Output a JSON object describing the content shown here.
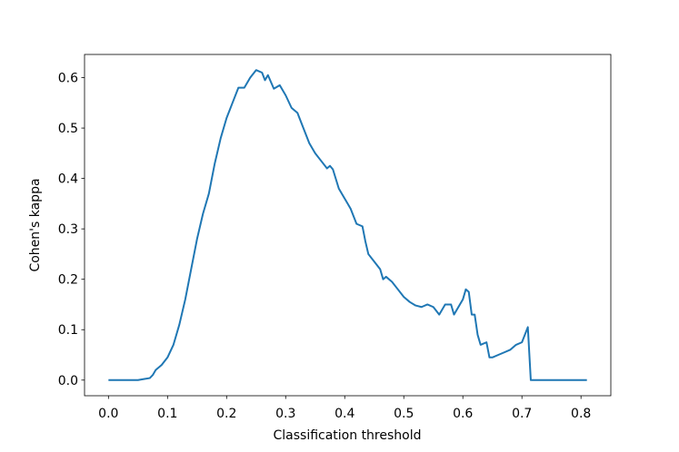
{
  "chart_data": {
    "type": "line",
    "xlabel": "Classification threshold",
    "ylabel": "Cohen's kappa",
    "x": [
      0.0,
      0.05,
      0.06,
      0.07,
      0.075,
      0.08,
      0.09,
      0.1,
      0.11,
      0.12,
      0.13,
      0.14,
      0.15,
      0.16,
      0.17,
      0.18,
      0.19,
      0.2,
      0.21,
      0.22,
      0.23,
      0.24,
      0.25,
      0.26,
      0.265,
      0.27,
      0.28,
      0.29,
      0.3,
      0.31,
      0.32,
      0.33,
      0.34,
      0.35,
      0.36,
      0.37,
      0.375,
      0.38,
      0.39,
      0.4,
      0.41,
      0.42,
      0.43,
      0.435,
      0.44,
      0.45,
      0.46,
      0.465,
      0.47,
      0.48,
      0.49,
      0.5,
      0.51,
      0.52,
      0.53,
      0.54,
      0.55,
      0.56,
      0.57,
      0.58,
      0.585,
      0.59,
      0.6,
      0.605,
      0.61,
      0.615,
      0.62,
      0.625,
      0.63,
      0.64,
      0.645,
      0.65,
      0.66,
      0.67,
      0.68,
      0.69,
      0.7,
      0.71,
      0.715,
      0.72,
      0.81
    ],
    "series": [
      {
        "name": "kappa",
        "color": "#1f77b4",
        "values": [
          0,
          0,
          0.002,
          0.004,
          0.01,
          0.02,
          0.03,
          0.045,
          0.07,
          0.11,
          0.16,
          0.22,
          0.28,
          0.33,
          0.37,
          0.43,
          0.48,
          0.52,
          0.55,
          0.58,
          0.58,
          0.6,
          0.615,
          0.61,
          0.595,
          0.605,
          0.578,
          0.585,
          0.565,
          0.54,
          0.53,
          0.5,
          0.47,
          0.45,
          0.435,
          0.42,
          0.425,
          0.418,
          0.38,
          0.36,
          0.34,
          0.31,
          0.305,
          0.275,
          0.25,
          0.235,
          0.22,
          0.2,
          0.205,
          0.195,
          0.18,
          0.165,
          0.155,
          0.148,
          0.145,
          0.15,
          0.145,
          0.13,
          0.15,
          0.15,
          0.13,
          0.14,
          0.16,
          0.18,
          0.175,
          0.13,
          0.13,
          0.09,
          0.07,
          0.075,
          0.045,
          0.045,
          0.05,
          0.055,
          0.06,
          0.07,
          0.075,
          0.105,
          0,
          0,
          0
        ]
      }
    ],
    "xlim": [
      -0.0405,
      0.8505
    ],
    "xticks": [
      {
        "value": 0,
        "label": "0.0"
      },
      0.1,
      0.2,
      0.3,
      0.4,
      0.5,
      0.6,
      0.7,
      0.8
    ],
    "ylim": [
      -0.031,
      0.646
    ],
    "yticks": [
      {
        "value": 0,
        "label": "0.0"
      },
      0.1,
      0.2,
      0.3,
      0.4,
      0.5,
      0.6
    ],
    "grid": false
  }
}
